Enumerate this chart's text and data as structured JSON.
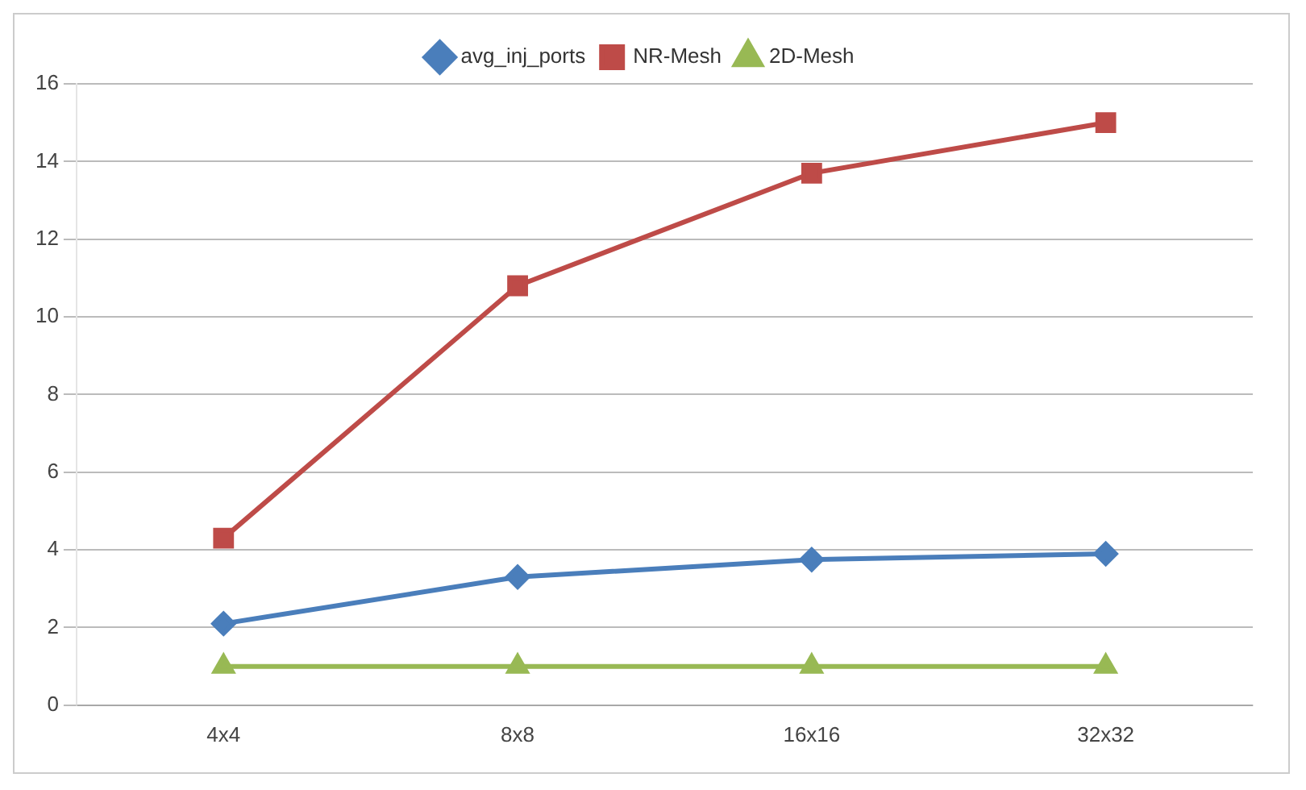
{
  "chart_data": {
    "type": "line",
    "categories": [
      "4x4",
      "8x8",
      "16x16",
      "32x32"
    ],
    "series": [
      {
        "name": "avg_inj_ports",
        "color": "#4a7ebb",
        "marker": "diamond",
        "values": [
          2.1,
          3.3,
          3.75,
          3.9
        ]
      },
      {
        "name": "NR-Mesh",
        "color": "#be4b48",
        "marker": "square",
        "values": [
          4.3,
          10.8,
          13.7,
          15.0
        ]
      },
      {
        "name": "2D-Mesh",
        "color": "#98b954",
        "marker": "triangle",
        "values": [
          1,
          1,
          1,
          1
        ]
      }
    ],
    "ylim": [
      0,
      16
    ],
    "yticks": [
      0,
      2,
      4,
      6,
      8,
      10,
      12,
      14,
      16
    ],
    "grid": "y",
    "legend": "top"
  }
}
